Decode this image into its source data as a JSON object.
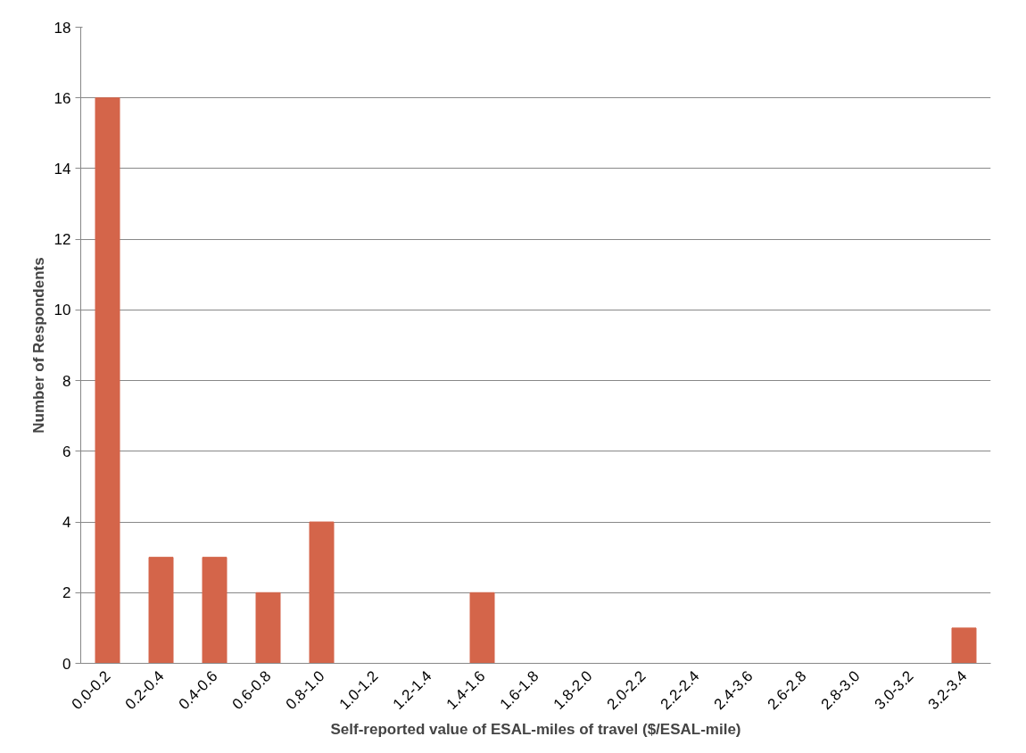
{
  "chart_data": {
    "type": "bar",
    "categories": [
      "0.0-0.2",
      "0.2-0.4",
      "0.4-0.6",
      "0.6-0.8",
      "0.8-1.0",
      "1.0-1.2",
      "1.2-1.4",
      "1.4-1.6",
      "1.6-1.8",
      "1.8-2.0",
      "2.0-2.2",
      "2.2-2.4",
      "2.4-3.6",
      "2.6-2.8",
      "2.8-3.0",
      "3.0-3.2",
      "3.2-3.4"
    ],
    "values": [
      16,
      3,
      3,
      2,
      4,
      0,
      0,
      2,
      0,
      0,
      0,
      0,
      0,
      0,
      0,
      0,
      1
    ],
    "color": "#d4654a",
    "xlabel": "Self-reported value of ESAL-miles of travel ($/ESAL-mile)",
    "ylabel": "Number of Respondents",
    "ylim": [
      0,
      18
    ],
    "yticks": [
      0,
      2,
      4,
      6,
      8,
      10,
      12,
      14,
      16,
      18
    ],
    "grid": "y"
  }
}
